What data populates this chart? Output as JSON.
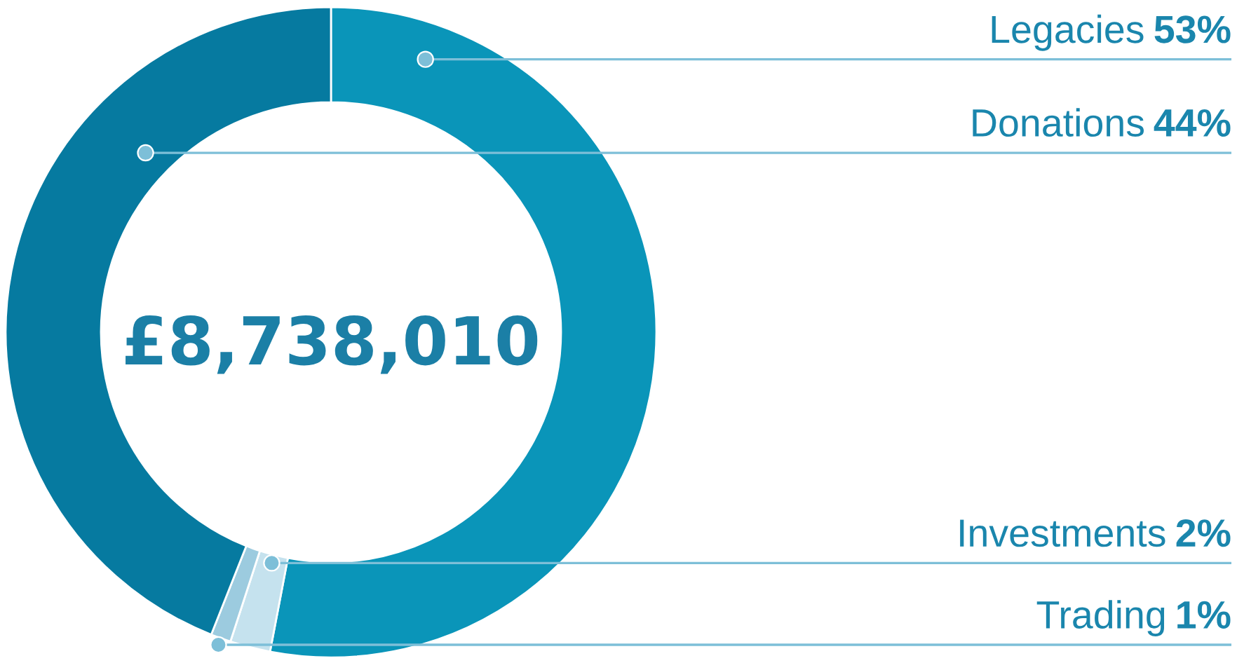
{
  "chart_data": {
    "type": "donut",
    "categories": [
      "Legacies",
      "Investments",
      "Trading",
      "Donations"
    ],
    "values": [
      53,
      2,
      1,
      44
    ],
    "value_labels": [
      "53%",
      "2%",
      "1%",
      "44%"
    ],
    "colors": [
      "#0a95b9",
      "#c5e2ee",
      "#9ccbdf",
      "#067aa0"
    ],
    "annotations": [
      "£8,738,010"
    ]
  }
}
